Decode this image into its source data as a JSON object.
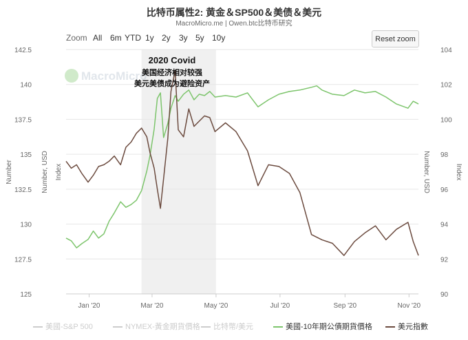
{
  "header": {
    "title": "比特币属性2: 黄金＆SP500＆美债＆美元",
    "subtitle": "MacroMicro.me | Owen.btc比特币研究"
  },
  "toolbar": {
    "zoom_label": "Zoom",
    "ranges": [
      "All",
      "6m",
      "YTD",
      "1y",
      "2y",
      "3y",
      "5y",
      "10y"
    ],
    "reset_label": "Reset zoom"
  },
  "watermark": "MacroMicro",
  "annotation": {
    "title": "2020 Covid",
    "line1": "美国经济相对较强",
    "line2": "美元美债成为避险资产"
  },
  "colors": {
    "bond": "#7cc46b",
    "usd": "#6b4a3e",
    "shade": "#f0f0f0",
    "grid": "#e6e6e6",
    "legend_off": "#cccccc"
  },
  "axes": {
    "left_title": "Number",
    "mid_left_title": "Number, USD",
    "mid_left_sub": "Index",
    "right_title": "Number, USD",
    "right_sub": "Index",
    "left_ticks": [
      "142.5",
      "140",
      "137.5",
      "135",
      "132.5",
      "130",
      "127.5",
      "125"
    ],
    "right_ticks": [
      "104",
      "102",
      "100",
      "98",
      "96",
      "94",
      "92",
      "90"
    ],
    "x_ticks": [
      "Jan '20",
      "Mar '20",
      "May '20",
      "Jul '20",
      "Sep '20",
      "Nov '20"
    ]
  },
  "legend": [
    {
      "label": "美國-S&P 500",
      "active": false
    },
    {
      "label": "NYMEX-黃金期貨價格",
      "active": false
    },
    {
      "label": "比特幣/美元",
      "active": false
    },
    {
      "label": "美國-10年期公債期貨價格",
      "active": true,
      "color": "#7cc46b"
    },
    {
      "label": "美元指數",
      "active": true,
      "color": "#6b4a3e"
    }
  ],
  "chart_data": {
    "type": "line",
    "x_range": [
      "2019-12-10",
      "2020-11-10"
    ],
    "shaded_range": [
      "2020-02-20",
      "2020-05-01"
    ],
    "left_axis_range": [
      125,
      142.5
    ],
    "right_axis_range": [
      90,
      104
    ],
    "series": [
      {
        "name": "美國-10年期公債期貨價格",
        "axis": "left",
        "x": [
          "2019-12-10",
          "2019-12-15",
          "2019-12-20",
          "2019-12-25",
          "2019-12-31",
          "2020-01-05",
          "2020-01-10",
          "2020-01-15",
          "2020-01-20",
          "2020-01-25",
          "2020-01-31",
          "2020-02-05",
          "2020-02-10",
          "2020-02-15",
          "2020-02-20",
          "2020-02-25",
          "2020-02-28",
          "2020-03-03",
          "2020-03-06",
          "2020-03-09",
          "2020-03-12",
          "2020-03-16",
          "2020-03-19",
          "2020-03-23",
          "2020-03-26",
          "2020-03-31",
          "2020-04-05",
          "2020-04-10",
          "2020-04-15",
          "2020-04-20",
          "2020-04-25",
          "2020-04-30",
          "2020-05-10",
          "2020-05-20",
          "2020-05-31",
          "2020-06-10",
          "2020-06-20",
          "2020-06-30",
          "2020-07-10",
          "2020-07-20",
          "2020-07-31",
          "2020-08-05",
          "2020-08-10",
          "2020-08-20",
          "2020-08-31",
          "2020-09-10",
          "2020-09-20",
          "2020-09-30",
          "2020-10-10",
          "2020-10-20",
          "2020-10-31",
          "2020-11-05",
          "2020-11-10"
        ],
        "values": [
          129.0,
          128.8,
          128.3,
          128.6,
          128.9,
          129.5,
          129.0,
          129.3,
          130.2,
          130.8,
          131.6,
          131.2,
          131.4,
          131.7,
          132.4,
          133.8,
          134.9,
          136.8,
          139.0,
          139.4,
          136.2,
          137.2,
          138.3,
          139.2,
          138.8,
          139.3,
          139.6,
          138.9,
          139.3,
          139.2,
          139.5,
          139.1,
          139.2,
          139.1,
          139.4,
          138.4,
          138.9,
          139.3,
          139.5,
          139.6,
          139.8,
          139.9,
          139.6,
          139.3,
          139.2,
          139.6,
          139.4,
          139.5,
          139.1,
          138.6,
          138.3,
          138.8,
          138.6
        ]
      },
      {
        "name": "美元指數",
        "axis": "right",
        "x": [
          "2019-12-10",
          "2019-12-15",
          "2019-12-20",
          "2019-12-25",
          "2019-12-31",
          "2020-01-05",
          "2020-01-10",
          "2020-01-15",
          "2020-01-20",
          "2020-01-25",
          "2020-01-31",
          "2020-02-05",
          "2020-02-10",
          "2020-02-15",
          "2020-02-20",
          "2020-02-25",
          "2020-02-28",
          "2020-03-03",
          "2020-03-06",
          "2020-03-09",
          "2020-03-12",
          "2020-03-16",
          "2020-03-19",
          "2020-03-23",
          "2020-03-26",
          "2020-03-31",
          "2020-04-05",
          "2020-04-10",
          "2020-04-15",
          "2020-04-20",
          "2020-04-25",
          "2020-04-30",
          "2020-05-10",
          "2020-05-20",
          "2020-05-31",
          "2020-06-10",
          "2020-06-20",
          "2020-06-30",
          "2020-07-10",
          "2020-07-20",
          "2020-07-31",
          "2020-08-10",
          "2020-08-20",
          "2020-08-31",
          "2020-09-10",
          "2020-09-20",
          "2020-09-30",
          "2020-10-10",
          "2020-10-20",
          "2020-10-31",
          "2020-11-05",
          "2020-11-10"
        ],
        "values": [
          97.6,
          97.2,
          97.4,
          96.9,
          96.4,
          96.8,
          97.3,
          97.4,
          97.6,
          97.9,
          97.4,
          98.4,
          98.7,
          99.2,
          99.5,
          99.0,
          98.1,
          97.2,
          96.0,
          94.9,
          96.6,
          98.9,
          101.6,
          102.8,
          99.4,
          99.0,
          100.6,
          99.6,
          99.9,
          100.2,
          100.1,
          99.3,
          99.8,
          99.3,
          98.2,
          96.2,
          97.4,
          97.3,
          96.9,
          95.8,
          93.4,
          93.1,
          92.9,
          92.2,
          93.0,
          93.5,
          93.9,
          93.1,
          93.7,
          94.1,
          93.0,
          92.2
        ]
      }
    ]
  }
}
